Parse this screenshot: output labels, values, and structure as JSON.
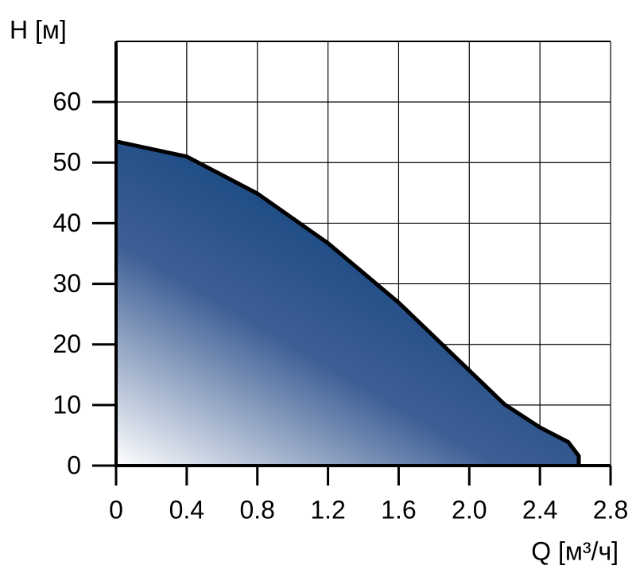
{
  "chart_data": {
    "type": "area",
    "x_label": "Q [м³/ч]",
    "y_label": "H [м]",
    "x": [
      0,
      0.4,
      0.8,
      1.2,
      1.6,
      2.0,
      2.2,
      2.4,
      2.56,
      2.62,
      2.62
    ],
    "series": [
      {
        "color": "#003a75",
        "values": [
          53.5,
          51,
          44.9,
          36.7,
          26.9,
          15.7,
          10.1,
          6.3,
          3.9,
          1.6,
          0
        ]
      }
    ],
    "xlim": [
      0,
      2.8
    ],
    "ylim": [
      0,
      70
    ],
    "xticks": [
      0,
      0.4,
      0.8,
      1.2,
      1.6,
      {
        "value": 2,
        "label": "2.0"
      },
      2.4,
      2.8
    ],
    "yticks": [
      0,
      10,
      20,
      30,
      40,
      50,
      60
    ],
    "grid": true
  }
}
